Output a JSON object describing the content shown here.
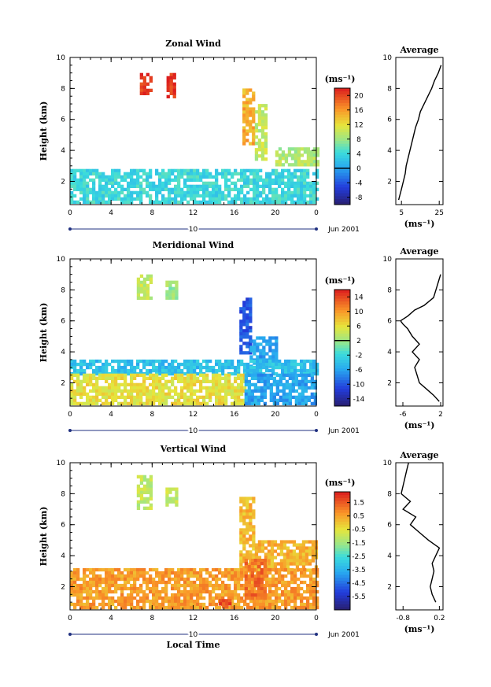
{
  "figure": {
    "xlabel": "Local Time",
    "date_label": "Jun 2001",
    "day_label": "10",
    "x_ticks": [
      "0",
      "4",
      "8",
      "12",
      "16",
      "20",
      "0"
    ],
    "units_label": "(ms⁻¹)"
  },
  "chart_data": [
    {
      "type": "heatmap",
      "title": "Zonal Wind",
      "ylabel": "Height (km)",
      "xlabel": "Local Time",
      "x_ticks": [
        "0",
        "4",
        "8",
        "12",
        "16",
        "20",
        "0"
      ],
      "xlim": [
        0,
        24
      ],
      "ylim": [
        0.5,
        10
      ],
      "y_ticks": [
        "2",
        "4",
        "6",
        "8",
        "10"
      ],
      "colorbar": {
        "label": "(ms⁻¹)",
        "ticks": [
          "20",
          "16",
          "12",
          "8",
          "4",
          "0",
          "-4",
          "-8"
        ],
        "range": [
          -10,
          22
        ]
      },
      "features": [
        {
          "x": [
            6.8,
            7.8
          ],
          "y": [
            7.6,
            9.0
          ],
          "value": 21
        },
        {
          "x": [
            9.4,
            10.3
          ],
          "y": [
            7.4,
            9.0
          ],
          "value": 21
        },
        {
          "x": [
            16.8,
            17.8
          ],
          "y": [
            4.4,
            8.0
          ],
          "value": 15
        },
        {
          "x": [
            18.0,
            19.0
          ],
          "y": [
            3.5,
            7.0
          ],
          "value": 10
        },
        {
          "x": [
            20.0,
            24.0
          ],
          "y": [
            3.0,
            4.2
          ],
          "value": 9
        },
        {
          "x": [
            0.0,
            24.0
          ],
          "y": [
            0.6,
            2.8
          ],
          "value": 4
        }
      ],
      "average": {
        "title": "Average",
        "x_ticks": [
          "5",
          "25"
        ],
        "xlim": [
          2,
          27
        ],
        "xlabel": "(ms⁻¹)",
        "y": [
          0.8,
          1.5,
          2.0,
          2.5,
          3.0,
          3.5,
          4.0,
          4.5,
          5.0,
          5.5,
          6.0,
          6.5,
          7.0,
          7.5,
          8.0,
          8.5,
          9.0,
          9.5
        ],
        "x": [
          3.5,
          5.0,
          6.0,
          7.0,
          7.5,
          8.5,
          9.5,
          10.5,
          11.5,
          12.5,
          14.0,
          15.0,
          17.0,
          19.0,
          21.0,
          22.5,
          24.5,
          26.0
        ]
      }
    },
    {
      "type": "heatmap",
      "title": "Meridional Wind",
      "ylabel": "Height (km)",
      "xlabel": "Local Time",
      "x_ticks": [
        "0",
        "4",
        "8",
        "12",
        "16",
        "20",
        "0"
      ],
      "xlim": [
        0,
        24
      ],
      "ylim": [
        0.5,
        10
      ],
      "y_ticks": [
        "2",
        "4",
        "6",
        "8",
        "10"
      ],
      "colorbar": {
        "label": "(ms⁻¹)",
        "ticks": [
          "14",
          "10",
          "6",
          "2",
          "-2",
          "-6",
          "-10",
          "-14"
        ],
        "range": [
          -16,
          16
        ]
      },
      "features": [
        {
          "x": [
            6.5,
            8.0
          ],
          "y": [
            7.5,
            9.0
          ],
          "value": 4
        },
        {
          "x": [
            9.3,
            10.3
          ],
          "y": [
            7.5,
            8.6
          ],
          "value": 2
        },
        {
          "x": [
            16.5,
            17.5
          ],
          "y": [
            4.0,
            7.5
          ],
          "value": -10
        },
        {
          "x": [
            17.5,
            20.0
          ],
          "y": [
            3.0,
            5.0
          ],
          "value": -6
        },
        {
          "x": [
            0.0,
            24.0
          ],
          "y": [
            2.6,
            3.5
          ],
          "value": -4
        },
        {
          "x": [
            0.0,
            17.0
          ],
          "y": [
            0.6,
            2.6
          ],
          "value": 6
        },
        {
          "x": [
            17.0,
            24.0
          ],
          "y": [
            0.6,
            2.6
          ],
          "value": -6
        }
      ],
      "average": {
        "title": "Average",
        "x_ticks": [
          "-6",
          "2"
        ],
        "xlim": [
          -7.5,
          2.5
        ],
        "xlabel": "(ms⁻¹)",
        "y": [
          0.8,
          1.2,
          1.6,
          2.0,
          2.5,
          3.0,
          3.5,
          4.0,
          4.5,
          5.0,
          5.5,
          5.8,
          6.0,
          6.3,
          6.7,
          7.0,
          7.5,
          8.0,
          8.5,
          9.0
        ],
        "x": [
          1.7,
          0.5,
          -1.0,
          -2.5,
          -3.0,
          -3.5,
          -2.5,
          -4.0,
          -2.5,
          -4.0,
          -5.0,
          -6.0,
          -6.5,
          -5.0,
          -3.5,
          -1.5,
          0.5,
          1.0,
          1.5,
          2.0
        ]
      }
    },
    {
      "type": "heatmap",
      "title": "Vertical Wind",
      "ylabel": "Height (km)",
      "xlabel": "Local Time",
      "x_ticks": [
        "0",
        "4",
        "8",
        "12",
        "16",
        "20",
        "0"
      ],
      "xlim": [
        0,
        24
      ],
      "ylim": [
        0.5,
        10
      ],
      "y_ticks": [
        "2",
        "4",
        "6",
        "8",
        "10"
      ],
      "colorbar": {
        "label": "(ms⁻¹)",
        "ticks": [
          "1.5",
          "0.5",
          "-0.5",
          "-1.5",
          "-2.5",
          "-3.5",
          "-4.5",
          "-5.5"
        ],
        "range": [
          -6.5,
          2.3
        ]
      },
      "features": [
        {
          "x": [
            6.5,
            8.0
          ],
          "y": [
            7.0,
            9.2
          ],
          "value": -1.0
        },
        {
          "x": [
            9.3,
            10.3
          ],
          "y": [
            7.3,
            8.4
          ],
          "value": -1.0
        },
        {
          "x": [
            16.5,
            18.0
          ],
          "y": [
            3.0,
            7.8
          ],
          "value": 0.2
        },
        {
          "x": [
            18.0,
            24.0
          ],
          "y": [
            3.0,
            5.0
          ],
          "value": 0.3
        },
        {
          "x": [
            0.0,
            24.0
          ],
          "y": [
            0.6,
            3.2
          ],
          "value": 0.6
        },
        {
          "x": [
            17.0,
            19.0
          ],
          "y": [
            1.2,
            3.8
          ],
          "value": 1.2
        },
        {
          "x": [
            14.5,
            15.5
          ],
          "y": [
            0.6,
            1.2
          ],
          "value": 1.6
        }
      ],
      "average": {
        "title": "Average",
        "x_ticks": [
          "-0.8",
          "0.2"
        ],
        "xlim": [
          -1.0,
          0.3
        ],
        "xlabel": "(ms⁻¹)",
        "y": [
          1.0,
          1.5,
          2.0,
          2.5,
          3.0,
          3.5,
          4.0,
          4.5,
          5.0,
          5.5,
          6.0,
          6.5,
          7.0,
          7.5,
          8.0,
          8.5,
          9.0,
          9.5,
          10.0
        ],
        "x": [
          0.1,
          0.0,
          -0.05,
          0.0,
          0.05,
          0.0,
          0.1,
          0.2,
          -0.1,
          -0.35,
          -0.6,
          -0.45,
          -0.8,
          -0.6,
          -0.85,
          -0.8,
          -0.75,
          -0.7,
          -0.65
        ]
      }
    }
  ]
}
